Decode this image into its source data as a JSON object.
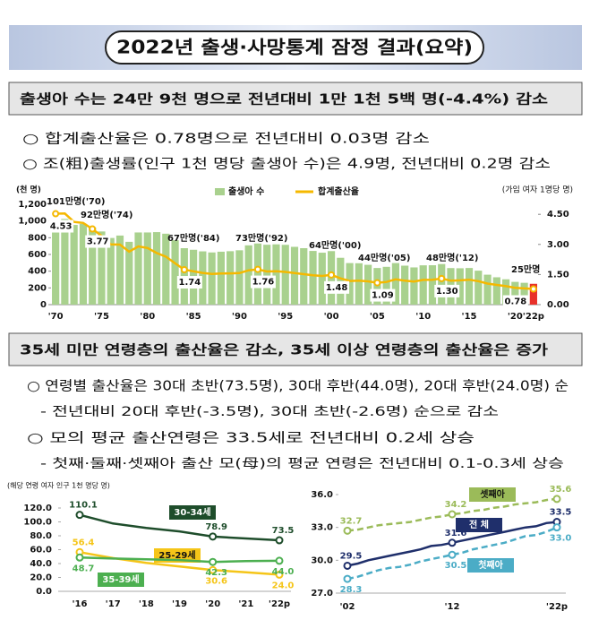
{
  "header": {
    "title": "2022년 출생·사망통계 잠정 결과(요약)"
  },
  "sections": [
    {
      "heading": "출생아 수는 24만 9천 명으로 전년대비 1만 1천 5백 명(-4.4%) 감소",
      "bullets": [
        "○ 합계출산율은 0.78명으로 전년대비 0.03명 감소",
        "○ 조(粗)출생률(인구 1천 명당 출생아 수)은 4.9명, 전년대비 0.2명 감소"
      ]
    },
    {
      "heading": "35세 미만 연령층의 출산율은 감소, 35세 이상 연령층의 출산율은 증가",
      "bullets": [
        "○ 연령별 출산율은 30대 초반(73.5명), 30대 후반(44.0명), 20대 후반(24.0명) 순",
        "- 전년대비 20대 후반(-3.5명), 30대 초반(-2.6명) 순으로 감소",
        "○ 모의 평균 출산연령은 33.5세로 전년대비 0.2세 상승",
        "- 첫째·둘째·셋째아 출산 모(母)의 평균 연령은 전년대비 0.1-0.3세 상승"
      ]
    }
  ],
  "chart_data": [
    {
      "type": "bar_line",
      "y_label": "(천 명)",
      "y2_label": "(가임 여자 1명당 명)",
      "categories": [
        "'70",
        null,
        null,
        null,
        null,
        "'75",
        null,
        null,
        null,
        null,
        "'80",
        null,
        null,
        null,
        null,
        "'85",
        null,
        null,
        null,
        null,
        "'90",
        null,
        null,
        null,
        null,
        "'95",
        null,
        null,
        null,
        null,
        "'00",
        null,
        null,
        null,
        null,
        "'05",
        null,
        null,
        null,
        null,
        "'10",
        null,
        null,
        null,
        null,
        "'15",
        null,
        null,
        null,
        null,
        "'20",
        null,
        "'22p"
      ],
      "series": [
        {
          "name": "출생아 수",
          "color": "#a9d18e",
          "last_color": "#e8312a",
          "values": [
            1007,
            1025,
            953,
            966,
            922,
            875,
            797,
            826,
            751,
            863,
            863,
            867,
            848,
            770,
            675,
            656,
            637,
            624,
            633,
            639,
            650,
            709,
            731,
            716,
            721,
            715,
            691,
            675,
            642,
            621,
            640,
            560,
            497,
            495,
            476,
            438,
            452,
            497,
            466,
            445,
            470,
            471,
            485,
            437,
            435,
            438,
            406,
            358,
            327,
            303,
            272,
            261,
            249
          ]
        },
        {
          "name": "합계출산율",
          "color": "#f5b800",
          "axis": "y2",
          "values": [
            4.53,
            4.54,
            4.12,
            4.07,
            3.77,
            3.43,
            3.0,
            2.99,
            2.64,
            2.9,
            2.82,
            2.57,
            2.39,
            2.06,
            1.74,
            1.66,
            1.58,
            1.53,
            1.55,
            1.56,
            1.57,
            1.71,
            1.76,
            1.65,
            1.66,
            1.63,
            1.57,
            1.52,
            1.46,
            1.43,
            1.48,
            1.31,
            1.18,
            1.19,
            1.16,
            1.09,
            1.13,
            1.26,
            1.19,
            1.15,
            1.23,
            1.24,
            1.3,
            1.19,
            1.21,
            1.24,
            1.17,
            1.05,
            0.98,
            0.92,
            0.84,
            0.81,
            0.78
          ],
          "value_labels": [
            "4.53",
            null,
            null,
            null,
            "3.77",
            null,
            null,
            null,
            null,
            null,
            null,
            null,
            null,
            null,
            "1.74",
            null,
            null,
            null,
            null,
            null,
            null,
            null,
            "1.76",
            null,
            null,
            null,
            null,
            null,
            null,
            null,
            "1.48",
            null,
            null,
            null,
            null,
            "1.09",
            null,
            null,
            null,
            null,
            null,
            null,
            "1.30",
            null,
            null,
            null,
            null,
            null,
            null,
            null,
            null,
            null,
            "0.78"
          ]
        }
      ],
      "annotations": [
        "101만명('70)",
        "92만명('74)",
        "67만명('84)",
        "73만명('92)",
        "64만명('00)",
        "44만명('05)",
        "48만명('12)",
        "25만명"
      ],
      "ylim": [
        0,
        1200
      ],
      "yticks": [
        0,
        200,
        400,
        600,
        800,
        {
          "value": 1000,
          "label": "1,000"
        },
        {
          "value": 1200,
          "label": "1,200"
        }
      ],
      "y2lim": [
        0,
        5
      ],
      "y2ticks": [
        {
          "value": 0,
          "label": "0.00"
        },
        {
          "value": 1.5,
          "label": "1.50"
        },
        {
          "value": 3,
          "label": "3.00"
        },
        {
          "value": 4.5,
          "label": "4.50"
        }
      ],
      "grid": false
    },
    {
      "type": "line",
      "y_label": "(해당 연령 여자 인구 1천 명당 명)",
      "categories": [
        "'16",
        "'17",
        "'18",
        "'19",
        "'20",
        "'21",
        "'22p"
      ],
      "series": [
        {
          "name": "30-34세",
          "color": "#1e4d2b",
          "values": [
            110.1,
            97.7,
            91.4,
            86.3,
            78.9,
            76.1,
            73.5
          ],
          "value_labels": [
            "110.1",
            null,
            null,
            null,
            "78.9",
            null,
            "73.5"
          ]
        },
        {
          "name": "25-29세",
          "color": "#f5c518",
          "values": [
            56.4,
            47.9,
            41.0,
            35.7,
            30.6,
            27.5,
            24.0
          ],
          "value_labels": [
            "56.4",
            null,
            null,
            null,
            "30.6",
            null,
            "24.0"
          ]
        },
        {
          "name": "35-39세",
          "color": "#4caf50",
          "values": [
            48.7,
            47.2,
            46.1,
            45.0,
            42.3,
            43.5,
            44.0
          ],
          "value_labels": [
            "48.7",
            null,
            null,
            null,
            "42.3",
            null,
            "44.0"
          ]
        }
      ],
      "ylim": [
        0,
        120
      ],
      "yticks": [
        {
          "value": 0,
          "label": "0.0"
        },
        {
          "value": 20,
          "label": "20.0"
        },
        {
          "value": 40,
          "label": "40.0"
        },
        {
          "value": 60,
          "label": "60.0"
        },
        {
          "value": 80,
          "label": "80.0"
        },
        {
          "value": 100,
          "label": "100.0"
        },
        {
          "value": 120,
          "label": "120.0"
        }
      ],
      "grid": false
    },
    {
      "type": "line",
      "categories": [
        "'02",
        null,
        null,
        null,
        null,
        null,
        null,
        null,
        null,
        null,
        "'12",
        null,
        null,
        null,
        null,
        null,
        null,
        null,
        null,
        null,
        "'22p"
      ],
      "series": [
        {
          "name": "전 체",
          "color": "#1f2f6b",
          "dash": false,
          "values": [
            29.5,
            29.7,
            30.0,
            30.2,
            30.4,
            30.6,
            30.8,
            31.0,
            31.3,
            31.4,
            31.6,
            31.8,
            32.0,
            32.2,
            32.4,
            32.6,
            32.8,
            33.0,
            33.1,
            33.4,
            33.5
          ],
          "value_labels": [
            "29.5",
            null,
            null,
            null,
            null,
            null,
            null,
            null,
            null,
            null,
            "31.6",
            null,
            null,
            null,
            null,
            null,
            null,
            null,
            null,
            null,
            "33.5"
          ]
        },
        {
          "name": "첫째아",
          "color": "#4bacc6",
          "dash": true,
          "values": [
            28.3,
            28.5,
            28.8,
            29.1,
            29.3,
            29.4,
            29.6,
            29.9,
            30.1,
            30.3,
            30.5,
            30.7,
            31.0,
            31.2,
            31.4,
            31.6,
            31.9,
            32.2,
            32.3,
            32.6,
            33.0
          ],
          "value_labels": [
            "28.3",
            null,
            null,
            null,
            null,
            null,
            null,
            null,
            null,
            null,
            "30.5",
            null,
            null,
            null,
            null,
            null,
            null,
            null,
            null,
            null,
            "33.0"
          ]
        },
        {
          "name": "셋째아",
          "color": "#9bbb59",
          "dash": true,
          "values": [
            32.7,
            32.8,
            33.0,
            33.2,
            33.3,
            33.4,
            33.5,
            33.7,
            33.9,
            34.0,
            34.2,
            34.3,
            34.5,
            34.6,
            34.8,
            34.9,
            35.1,
            35.2,
            35.3,
            35.5,
            35.6
          ],
          "value_labels": [
            "32.7",
            null,
            null,
            null,
            null,
            null,
            null,
            null,
            null,
            null,
            "34.2",
            null,
            null,
            null,
            null,
            null,
            null,
            null,
            null,
            null,
            "35.6"
          ]
        }
      ],
      "ylim": [
        27,
        36
      ],
      "yticks": [
        {
          "value": 27,
          "label": "27.0"
        },
        {
          "value": 30,
          "label": "30.0"
        },
        {
          "value": 33,
          "label": "33.0"
        },
        {
          "value": 36,
          "label": "36.0"
        }
      ],
      "grid": false
    }
  ]
}
